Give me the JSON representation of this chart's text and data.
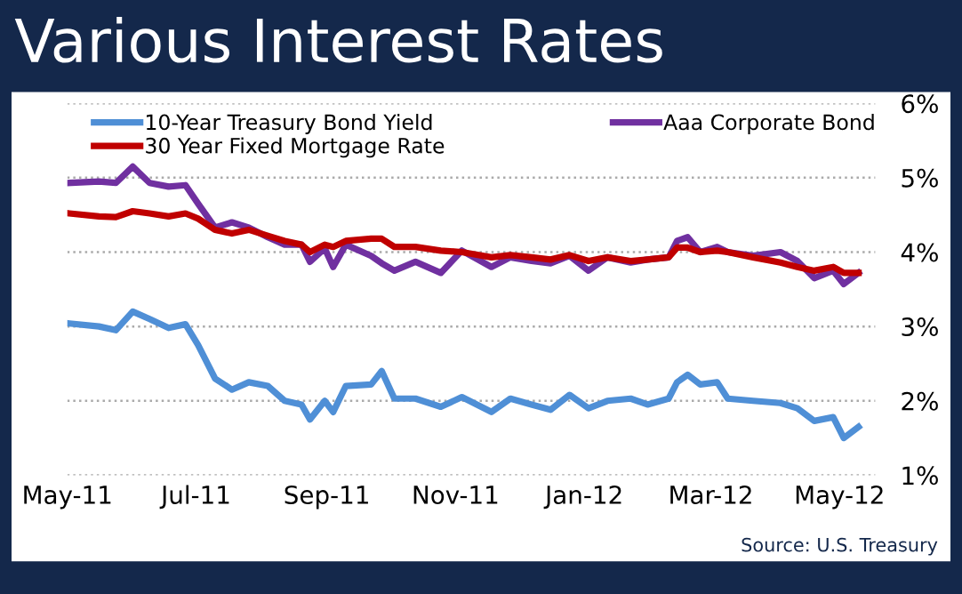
{
  "chart_data": {
    "type": "line",
    "title": "Various Interest Rates",
    "annotations": [
      "Source: U.S. Treasury"
    ],
    "x": [
      "2011-05-02",
      "2011-05-16",
      "2011-05-24",
      "2011-06-01",
      "2011-06-09",
      "2011-06-18",
      "2011-06-26",
      "2011-07-02",
      "2011-07-10",
      "2011-07-18",
      "2011-07-26",
      "2011-08-04",
      "2011-08-12",
      "2011-08-20",
      "2011-08-24",
      "2011-08-31",
      "2011-09-04",
      "2011-09-10",
      "2011-09-22",
      "2011-09-27",
      "2011-10-03",
      "2011-10-13",
      "2011-10-25",
      "2011-11-04",
      "2011-11-18",
      "2011-11-27",
      "2011-12-07",
      "2011-12-16",
      "2011-12-25",
      "2012-01-03",
      "2012-01-12",
      "2012-01-23",
      "2012-01-31",
      "2012-02-10",
      "2012-02-14",
      "2012-02-19",
      "2012-02-25",
      "2012-03-04",
      "2012-03-09",
      "2012-03-21",
      "2012-04-03",
      "2012-04-11",
      "2012-04-19",
      "2012-04-28",
      "2012-05-03",
      "2012-05-10"
    ],
    "series": [
      {
        "name": "10-Year Treasury Bond Yield",
        "color": "#4f8fd6",
        "values": [
          3.04,
          3.0,
          2.95,
          3.2,
          3.1,
          2.98,
          3.03,
          2.75,
          2.3,
          2.15,
          2.25,
          2.2,
          2.0,
          1.95,
          1.75,
          2.0,
          1.85,
          2.2,
          2.22,
          2.4,
          2.03,
          2.03,
          1.92,
          2.05,
          1.85,
          2.03,
          1.95,
          1.88,
          2.08,
          1.9,
          2.0,
          2.03,
          1.95,
          2.03,
          2.25,
          2.35,
          2.22,
          2.25,
          2.03,
          2.0,
          1.97,
          1.9,
          1.73,
          1.78,
          1.5,
          1.65
        ]
      },
      {
        "name": "Aaa Corporate Bond",
        "color": "#7030a0",
        "values": [
          4.93,
          4.95,
          4.93,
          5.15,
          4.93,
          4.88,
          4.9,
          4.65,
          4.33,
          4.4,
          4.33,
          4.2,
          4.1,
          4.1,
          3.87,
          4.05,
          3.8,
          4.1,
          3.95,
          3.85,
          3.75,
          3.87,
          3.72,
          4.02,
          3.8,
          3.93,
          3.88,
          3.85,
          3.95,
          3.75,
          3.93,
          3.86,
          3.9,
          3.93,
          4.15,
          4.2,
          4.0,
          4.07,
          4.0,
          3.95,
          4.0,
          3.88,
          3.65,
          3.75,
          3.57,
          3.72
        ]
      },
      {
        "name": "30 Year Fixed Mortgage Rate",
        "color": "#c00000",
        "values": [
          4.52,
          4.48,
          4.47,
          4.55,
          4.52,
          4.48,
          4.52,
          4.45,
          4.3,
          4.25,
          4.3,
          4.22,
          4.15,
          4.1,
          4.0,
          4.1,
          4.07,
          4.15,
          4.18,
          4.18,
          4.07,
          4.07,
          4.02,
          4.0,
          3.93,
          3.96,
          3.93,
          3.9,
          3.96,
          3.88,
          3.93,
          3.88,
          3.9,
          3.93,
          4.06,
          4.06,
          4.0,
          4.02,
          4.0,
          3.93,
          3.86,
          3.8,
          3.75,
          3.8,
          3.72,
          3.72
        ]
      }
    ],
    "xlim": [
      "2011-05-01",
      "2012-05-18"
    ],
    "xticks": [
      {
        "value": "2011-05-01",
        "label": "May-11"
      },
      {
        "value": "2011-07-01",
        "label": "Jul-11"
      },
      {
        "value": "2011-09-01",
        "label": "Sep-11"
      },
      {
        "value": "2011-11-01",
        "label": "Nov-11"
      },
      {
        "value": "2012-01-01",
        "label": "Jan-12"
      },
      {
        "value": "2012-03-01",
        "label": "Mar-12"
      },
      {
        "value": "2012-05-01",
        "label": "May-12"
      }
    ],
    "ylim": [
      1,
      6
    ],
    "yticks": [
      {
        "value": 1,
        "label": "1%"
      },
      {
        "value": 2,
        "label": "2%"
      },
      {
        "value": 3,
        "label": "3%"
      },
      {
        "value": 4,
        "label": "4%"
      },
      {
        "value": 5,
        "label": "5%"
      },
      {
        "value": 6,
        "label": "6%"
      }
    ],
    "grid": "y",
    "legend": "top",
    "marker": "none",
    "line_style": "solid"
  }
}
